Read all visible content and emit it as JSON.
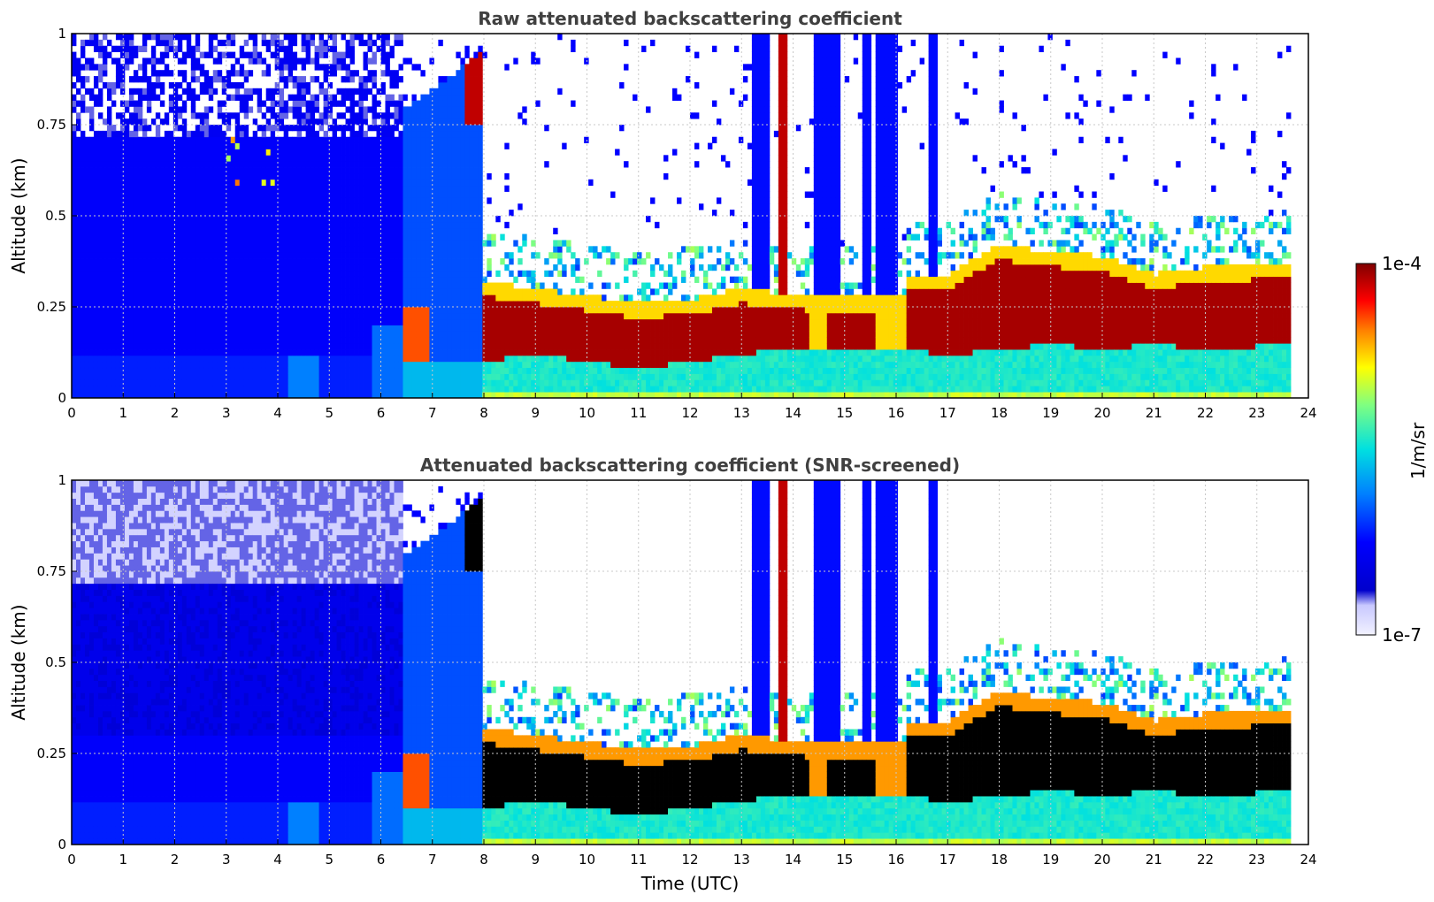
{
  "chart_data": [
    {
      "type": "heatmap",
      "title": "Raw attenuated backscattering coefficient",
      "ylabel": "Altitude (km)",
      "xlabel": "",
      "xlim": [
        0,
        24
      ],
      "ylim": [
        0,
        1
      ],
      "x_ticks": [
        "0",
        "1",
        "2",
        "3",
        "4",
        "5",
        "6",
        "7",
        "8",
        "9",
        "10",
        "11",
        "12",
        "13",
        "14",
        "15",
        "16",
        "17",
        "18",
        "19",
        "20",
        "21",
        "22",
        "23",
        "24"
      ],
      "y_ticks": [
        "0",
        "0.25",
        "0.5",
        "0.75",
        "1"
      ],
      "grid": true,
      "colormap": "jet",
      "color_scale": "log",
      "layers": [
        {
          "t": [
            0.0,
            1.0,
            2.0,
            3.0,
            4.0,
            5.0,
            6.0,
            6.45
          ],
          "top": [
            0.72,
            0.72,
            0.72,
            0.72,
            0.72,
            0.72,
            0.72,
            0.72
          ],
          "bottom": [
            0,
            0,
            0,
            0,
            0,
            0,
            0,
            0
          ],
          "level": 0.26
        },
        {
          "t": [
            6.5,
            7.0,
            7.5,
            7.9
          ],
          "top": [
            0.8,
            0.85,
            0.9,
            0.95
          ],
          "bottom": [
            0,
            0,
            0,
            0
          ],
          "level": 0.3
        },
        {
          "t": [
            8.0,
            9.0,
            10.0,
            11.0,
            12.0,
            13.0,
            14.3
          ],
          "top": [
            0.28,
            0.26,
            0.24,
            0.22,
            0.23,
            0.26,
            0.24
          ],
          "bottom": [
            0.1,
            0.12,
            0.1,
            0.08,
            0.1,
            0.12,
            0.14
          ],
          "level": 0.97
        },
        {
          "t": [
            16.2,
            17.0,
            18.0,
            19.0,
            20.0,
            21.0,
            22.0,
            23.7
          ],
          "top": [
            0.3,
            0.3,
            0.38,
            0.36,
            0.35,
            0.3,
            0.32,
            0.33
          ],
          "bottom": [
            0.13,
            0.12,
            0.13,
            0.15,
            0.13,
            0.15,
            0.13,
            0.15
          ],
          "level": 0.97
        }
      ]
    },
    {
      "type": "heatmap",
      "title": "Attenuated backscattering coefficient (SNR-screened)",
      "ylabel": "Altitude (km)",
      "xlabel": "Time (UTC)",
      "xlim": [
        0,
        24
      ],
      "ylim": [
        0,
        1
      ],
      "x_ticks": [
        "0",
        "1",
        "2",
        "3",
        "4",
        "5",
        "6",
        "7",
        "8",
        "9",
        "10",
        "11",
        "12",
        "13",
        "14",
        "15",
        "16",
        "17",
        "18",
        "19",
        "20",
        "21",
        "22",
        "23",
        "24"
      ],
      "y_ticks": [
        "0",
        "0.25",
        "0.5",
        "0.75",
        "1"
      ],
      "grid": true,
      "colormap": "jet",
      "color_scale": "log",
      "screened": true
    }
  ],
  "colorbar": {
    "label": "1/m/sr",
    "min_label": "1e-7",
    "max_label": "1e-4",
    "range": [
      1e-07,
      0.0001
    ],
    "scale": "log"
  }
}
